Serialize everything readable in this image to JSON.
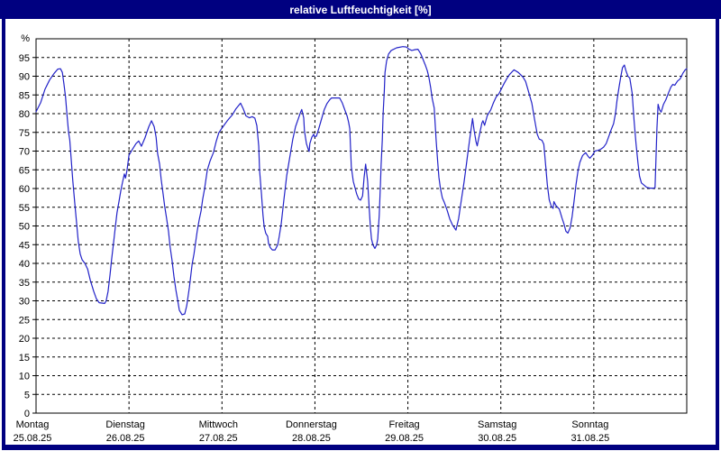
{
  "window": {
    "title": "relative Luftfeuchtigkeit [%]",
    "colors": {
      "frame": "#000080",
      "title_text": "#ffffff",
      "background": "#ffffff",
      "grid": "#000000",
      "line": "#2222c8"
    }
  },
  "chart_data": {
    "type": "line",
    "title": "relative Luftfeuchtigkeit [%]",
    "ylabel": "%",
    "xlabel": "",
    "ylim": [
      0,
      100
    ],
    "xlim": [
      0,
      168
    ],
    "x_unit": "hours since Montag 00:00",
    "grid": "dashed",
    "legend": "none",
    "y_ticks": [
      0,
      5,
      10,
      15,
      20,
      25,
      30,
      35,
      40,
      45,
      50,
      55,
      60,
      65,
      70,
      75,
      80,
      85,
      90,
      95
    ],
    "days": [
      {
        "label": "Montag",
        "date": "25.08.25"
      },
      {
        "label": "Dienstag",
        "date": "26.08.25"
      },
      {
        "label": "Mittwoch",
        "date": "27.08.25"
      },
      {
        "label": "Donnerstag",
        "date": "28.08.25"
      },
      {
        "label": "Freitag",
        "date": "29.08.25"
      },
      {
        "label": "Samstag",
        "date": "30.08.25"
      },
      {
        "label": "Sonntag",
        "date": "31.08.25"
      }
    ],
    "series": [
      {
        "name": "relative Luftfeuchtigkeit",
        "color": "#2222c8",
        "points": [
          [
            0,
            80.5
          ],
          [
            1.2,
            83
          ],
          [
            2.3,
            86.5
          ],
          [
            3.5,
            89
          ],
          [
            4.7,
            90.8
          ],
          [
            5.6,
            91.9
          ],
          [
            6.3,
            92
          ],
          [
            6.8,
            91
          ],
          [
            7.2,
            88
          ],
          [
            7.6,
            84.5
          ],
          [
            8,
            79.5
          ],
          [
            8.4,
            75
          ],
          [
            8.7,
            73
          ],
          [
            9.1,
            67.5
          ],
          [
            9.5,
            62
          ],
          [
            10,
            56
          ],
          [
            10.5,
            50.5
          ],
          [
            10.9,
            46
          ],
          [
            11.4,
            42.5
          ],
          [
            11.9,
            41
          ],
          [
            12.6,
            40
          ],
          [
            13.3,
            38.5
          ],
          [
            14,
            35.5
          ],
          [
            14.9,
            32.5
          ],
          [
            15.6,
            30.5
          ],
          [
            16.3,
            29.5
          ],
          [
            17.7,
            29.3
          ],
          [
            18.1,
            30
          ],
          [
            18.6,
            32.5
          ],
          [
            19.1,
            37
          ],
          [
            19.5,
            41
          ],
          [
            20,
            45.5
          ],
          [
            20.5,
            50
          ],
          [
            20.9,
            53.5
          ],
          [
            21.4,
            56.5
          ],
          [
            21.9,
            59.5
          ],
          [
            22.3,
            61.5
          ],
          [
            22.8,
            63.9
          ],
          [
            23.1,
            62.8
          ],
          [
            23.5,
            65
          ],
          [
            24,
            68.9
          ],
          [
            24.9,
            70.5
          ],
          [
            25.8,
            72
          ],
          [
            26.5,
            72.7
          ],
          [
            27.2,
            71.3
          ],
          [
            28.1,
            73.5
          ],
          [
            29.1,
            76.5
          ],
          [
            29.8,
            78.1
          ],
          [
            30.5,
            76.5
          ],
          [
            31,
            73.7
          ],
          [
            31.4,
            69.3
          ],
          [
            31.9,
            66.5
          ],
          [
            32.3,
            62.5
          ],
          [
            32.8,
            58.5
          ],
          [
            33.2,
            55.3
          ],
          [
            33.7,
            52.1
          ],
          [
            34.2,
            48.5
          ],
          [
            34.6,
            44.5
          ],
          [
            35.1,
            41
          ],
          [
            35.6,
            36.5
          ],
          [
            36.1,
            33
          ],
          [
            36.5,
            30.5
          ],
          [
            37,
            27.5
          ],
          [
            37.7,
            26.3
          ],
          [
            38.4,
            26.5
          ],
          [
            38.9,
            28.7
          ],
          [
            39.6,
            33.7
          ],
          [
            40.3,
            39.8
          ],
          [
            40.8,
            42.6
          ],
          [
            41.2,
            45.7
          ],
          [
            41.6,
            48.6
          ],
          [
            42.1,
            51.5
          ],
          [
            42.6,
            54
          ],
          [
            43,
            57
          ],
          [
            43.5,
            59.8
          ],
          [
            44.2,
            64.9
          ],
          [
            44.9,
            67.3
          ],
          [
            45.8,
            69.6
          ],
          [
            46.5,
            72.5
          ],
          [
            47.2,
            74.9
          ],
          [
            47.9,
            76
          ],
          [
            48.6,
            77
          ],
          [
            49.3,
            78
          ],
          [
            50,
            78.9
          ],
          [
            50.7,
            79.7
          ],
          [
            51.6,
            81.3
          ],
          [
            52.8,
            82.8
          ],
          [
            53.5,
            81.3
          ],
          [
            54.2,
            79.4
          ],
          [
            55.1,
            78.9
          ],
          [
            55.8,
            79.2
          ],
          [
            56.5,
            78.8
          ],
          [
            57,
            76.8
          ],
          [
            57.5,
            71.3
          ],
          [
            57.7,
            64.9
          ],
          [
            58.2,
            58.6
          ],
          [
            58.6,
            52.9
          ],
          [
            58.9,
            49.8
          ],
          [
            59.3,
            48.1
          ],
          [
            59.8,
            47.2
          ],
          [
            60,
            45.4
          ],
          [
            60.5,
            44.2
          ],
          [
            61,
            43.6
          ],
          [
            61.7,
            43.6
          ],
          [
            62.4,
            45
          ],
          [
            62.8,
            47.3
          ],
          [
            63.3,
            50.5
          ],
          [
            64,
            57
          ],
          [
            64.7,
            63.4
          ],
          [
            65.6,
            68.9
          ],
          [
            66.3,
            73.2
          ],
          [
            67,
            76.5
          ],
          [
            67.9,
            79.2
          ],
          [
            68.2,
            80.1
          ],
          [
            68.6,
            81.1
          ],
          [
            69.1,
            78.9
          ],
          [
            69.3,
            75.4
          ],
          [
            69.8,
            72
          ],
          [
            70.3,
            70.4
          ],
          [
            70.5,
            69.9
          ],
          [
            70.7,
            72
          ],
          [
            71.2,
            73.7
          ],
          [
            71.7,
            74.5
          ],
          [
            71.9,
            73.8
          ],
          [
            72.4,
            74
          ],
          [
            73,
            76
          ],
          [
            73.7,
            78.5
          ],
          [
            74.4,
            81
          ],
          [
            75.1,
            82.7
          ],
          [
            75.8,
            83.7
          ],
          [
            76.3,
            84.2
          ],
          [
            78.4,
            84.2
          ],
          [
            79.1,
            82.8
          ],
          [
            79.8,
            80.8
          ],
          [
            80.3,
            79.4
          ],
          [
            80.7,
            77.7
          ],
          [
            81,
            76
          ],
          [
            81.4,
            65.8
          ],
          [
            81.9,
            61.9
          ],
          [
            82.8,
            58.5
          ],
          [
            83.3,
            57.2
          ],
          [
            83.8,
            56.9
          ],
          [
            84.3,
            58
          ],
          [
            84.7,
            63
          ],
          [
            85.1,
            66.5
          ],
          [
            85.6,
            62
          ],
          [
            86,
            55
          ],
          [
            86.3,
            50
          ],
          [
            86.6,
            46.5
          ],
          [
            87,
            44.9
          ],
          [
            87.5,
            44
          ],
          [
            87.9,
            44.9
          ],
          [
            88.2,
            46.5
          ],
          [
            88.6,
            52.9
          ],
          [
            88.9,
            61
          ],
          [
            89.1,
            66.5
          ],
          [
            89.4,
            73
          ],
          [
            89.6,
            80
          ],
          [
            89.9,
            86
          ],
          [
            90.1,
            91
          ],
          [
            90.5,
            94
          ],
          [
            91,
            95.9
          ],
          [
            91.7,
            96.9
          ],
          [
            93.1,
            97.6
          ],
          [
            94.7,
            97.9
          ],
          [
            95.6,
            97.8
          ],
          [
            96.3,
            97.2
          ],
          [
            97,
            96.9
          ],
          [
            97.9,
            97.1
          ],
          [
            98.6,
            97.2
          ],
          [
            99.3,
            96
          ],
          [
            99.8,
            94.8
          ],
          [
            100.5,
            93
          ],
          [
            101,
            91.5
          ],
          [
            101.4,
            89.8
          ],
          [
            101.9,
            86.9
          ],
          [
            102.3,
            84
          ],
          [
            102.8,
            81.5
          ],
          [
            103.3,
            73
          ],
          [
            103.7,
            67
          ],
          [
            104,
            63
          ],
          [
            104.4,
            60
          ],
          [
            104.9,
            57.5
          ],
          [
            105.4,
            56.3
          ],
          [
            106.1,
            54.3
          ],
          [
            106.8,
            51.9
          ],
          [
            107.5,
            50.3
          ],
          [
            108.4,
            48.9
          ],
          [
            109.1,
            52
          ],
          [
            109.6,
            55.5
          ],
          [
            110.1,
            59
          ],
          [
            110.5,
            61.7
          ],
          [
            111,
            65.5
          ],
          [
            111.4,
            68.9
          ],
          [
            111.9,
            72.7
          ],
          [
            112.4,
            76.5
          ],
          [
            112.7,
            78.7
          ],
          [
            113.1,
            75.5
          ],
          [
            113.6,
            72.5
          ],
          [
            113.9,
            71.4
          ],
          [
            114.5,
            74.5
          ],
          [
            115.1,
            77.5
          ],
          [
            115.4,
            78.1
          ],
          [
            115.8,
            76.9
          ],
          [
            116.5,
            79.5
          ],
          [
            117.4,
            81
          ],
          [
            118.1,
            82.9
          ],
          [
            118.8,
            84.5
          ],
          [
            119.5,
            85.3
          ],
          [
            120.1,
            86.5
          ],
          [
            120.8,
            88
          ],
          [
            121.5,
            89.3
          ],
          [
            122.2,
            90.4
          ],
          [
            123.4,
            91.7
          ],
          [
            124.5,
            91
          ],
          [
            125.7,
            89.8
          ],
          [
            126.4,
            88.6
          ],
          [
            127.1,
            86.1
          ],
          [
            128,
            82.8
          ],
          [
            128.7,
            78.5
          ],
          [
            129.4,
            74.5
          ],
          [
            129.9,
            73.2
          ],
          [
            130.6,
            72.9
          ],
          [
            131.1,
            71.8
          ],
          [
            131.6,
            65.8
          ],
          [
            132,
            61
          ],
          [
            132.5,
            57
          ],
          [
            133,
            55.3
          ],
          [
            133.5,
            54.7
          ],
          [
            133.7,
            56.5
          ],
          [
            134.2,
            55.5
          ],
          [
            135.1,
            54.5
          ],
          [
            135.8,
            52.1
          ],
          [
            136.3,
            50.5
          ],
          [
            136.8,
            48.6
          ],
          [
            137.3,
            48.1
          ],
          [
            137.9,
            49.5
          ],
          [
            138.4,
            52.5
          ],
          [
            138.9,
            56.5
          ],
          [
            139.4,
            61
          ],
          [
            139.9,
            64.5
          ],
          [
            140.4,
            67
          ],
          [
            141.1,
            68.8
          ],
          [
            141.9,
            69.6
          ],
          [
            142.6,
            68.5
          ],
          [
            143,
            68.1
          ],
          [
            143.7,
            69
          ],
          [
            144.3,
            70
          ],
          [
            145.1,
            70.2
          ],
          [
            145.8,
            70.5
          ],
          [
            146.5,
            71
          ],
          [
            147.2,
            72
          ],
          [
            147.9,
            74
          ],
          [
            148.6,
            76
          ],
          [
            149.1,
            77.3
          ],
          [
            149.6,
            80
          ],
          [
            150,
            83.5
          ],
          [
            150.5,
            87
          ],
          [
            151,
            90
          ],
          [
            151.4,
            92.3
          ],
          [
            151.9,
            93
          ],
          [
            152.3,
            91.5
          ],
          [
            152.8,
            90
          ],
          [
            153.3,
            89.5
          ],
          [
            153.9,
            85.5
          ],
          [
            154.4,
            78
          ],
          [
            154.9,
            72
          ],
          [
            155.4,
            66.8
          ],
          [
            155.8,
            63.3
          ],
          [
            156.3,
            61.5
          ],
          [
            157,
            60.9
          ],
          [
            157.7,
            60.3
          ],
          [
            158.6,
            60.1
          ],
          [
            159.4,
            60.1
          ],
          [
            159.8,
            60.2
          ],
          [
            160,
            66
          ],
          [
            160.3,
            76
          ],
          [
            160.6,
            82.5
          ],
          [
            161,
            81
          ],
          [
            161.4,
            80.4
          ],
          [
            162,
            82.5
          ],
          [
            162.6,
            83.7
          ],
          [
            163.3,
            85.6
          ],
          [
            163.9,
            87.1
          ],
          [
            164.4,
            87.8
          ],
          [
            164.9,
            87.6
          ],
          [
            165.6,
            88.7
          ],
          [
            166.3,
            89.3
          ],
          [
            167,
            90.8
          ],
          [
            167.6,
            91.7
          ],
          [
            168,
            92
          ]
        ]
      }
    ]
  }
}
